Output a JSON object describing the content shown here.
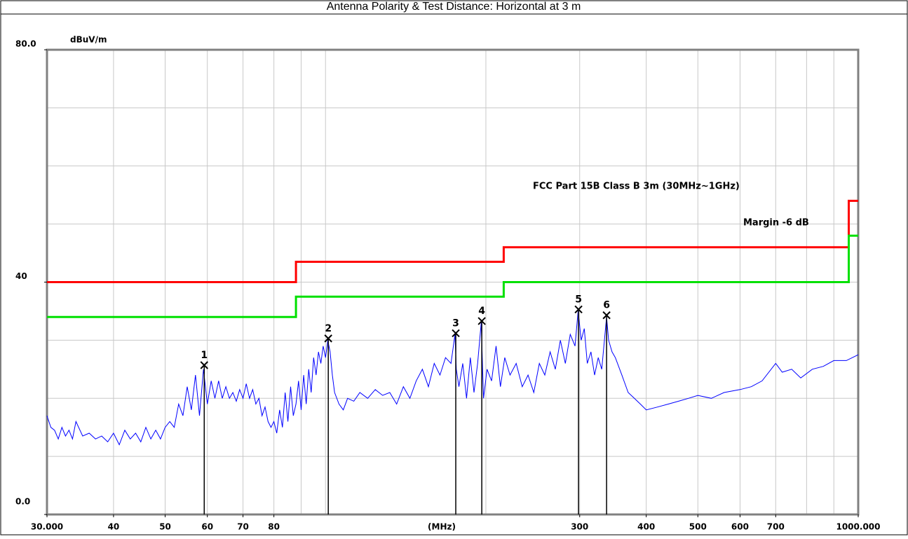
{
  "chart_data": {
    "type": "line",
    "title": "Antenna Polarity & Test Distance: Horizontal at 3 m",
    "y_label": "dBuV/m",
    "x_label": "(MHz)",
    "xscale": "log",
    "xlim": [
      30,
      1000
    ],
    "ylim": [
      0,
      80
    ],
    "xticks": [
      {
        "value": 30,
        "label": "30.000"
      },
      40,
      50,
      60,
      70,
      80,
      300,
      400,
      500,
      600,
      700,
      {
        "value": 1000,
        "label": "1000.000"
      }
    ],
    "xgrid": [
      30,
      40,
      50,
      60,
      70,
      80,
      90,
      100,
      200,
      300,
      400,
      500,
      600,
      700,
      800,
      900,
      1000
    ],
    "yticks": [
      {
        "value": 0,
        "label": "0.0"
      },
      40,
      {
        "value": 80,
        "label": "80.0"
      }
    ],
    "ygrid": [
      0,
      10,
      20,
      30,
      40,
      50,
      60,
      70,
      80
    ],
    "grid": true,
    "series": [
      {
        "color": "#0000ff",
        "x": [
          30,
          30.5,
          31,
          31.5,
          32,
          32.5,
          33,
          33.5,
          34,
          35,
          36,
          37,
          38,
          39,
          40,
          41,
          42,
          43,
          44,
          45,
          46,
          47,
          48,
          49,
          50,
          51,
          52,
          53,
          54,
          55,
          56,
          57,
          58,
          59,
          60,
          61,
          62,
          63,
          64,
          65,
          66,
          67,
          68,
          69,
          70,
          71,
          72,
          73,
          74,
          75,
          76,
          77,
          78,
          79,
          80,
          81,
          82,
          83,
          84,
          85,
          86,
          87,
          88,
          89,
          90,
          91,
          92,
          93,
          94,
          95,
          96,
          97,
          98,
          99,
          100,
          101,
          102,
          103,
          104,
          106,
          108,
          110,
          113,
          116,
          120,
          124,
          128,
          132,
          136,
          140,
          144,
          148,
          152,
          156,
          160,
          164,
          168,
          172,
          175,
          176,
          178,
          181,
          184,
          187,
          190,
          193,
          196,
          198,
          201,
          205,
          209,
          213,
          217,
          222,
          228,
          234,
          240,
          246,
          252,
          258,
          264,
          270,
          276,
          282,
          288,
          294,
          298,
          302,
          306,
          310,
          315,
          320,
          325,
          330,
          337,
          340,
          345,
          350,
          360,
          370,
          380,
          390,
          400,
          420,
          440,
          460,
          480,
          500,
          530,
          560,
          600,
          630,
          660,
          700,
          720,
          750,
          780,
          820,
          860,
          900,
          950,
          1000
        ],
        "values": [
          17,
          15,
          14.5,
          13,
          15,
          13.5,
          14.5,
          13,
          16,
          13.5,
          14,
          13,
          13.5,
          12.5,
          14,
          12,
          14.5,
          13,
          14,
          12.5,
          15,
          13,
          14.5,
          13,
          15,
          16,
          15,
          19,
          17,
          22,
          18,
          24,
          17,
          25,
          19,
          23,
          20,
          23,
          20,
          22,
          20,
          21,
          19.5,
          21.5,
          20,
          22.5,
          20,
          21.5,
          19,
          20,
          17,
          18.5,
          16,
          15,
          16,
          14,
          18,
          15,
          21,
          16,
          22,
          17,
          19,
          23,
          18,
          24,
          19,
          25,
          21,
          27,
          24,
          28,
          26,
          29,
          27,
          30,
          28,
          24,
          21,
          19,
          18,
          20,
          19.5,
          21,
          20,
          21.5,
          20.5,
          21,
          19,
          22,
          20,
          23,
          25,
          22,
          26,
          24,
          27,
          26,
          31,
          25,
          22,
          26,
          20,
          27,
          21,
          26,
          33,
          20,
          25,
          23,
          29,
          22,
          27,
          24,
          26,
          22,
          24,
          21,
          26,
          24,
          28,
          25,
          30,
          26,
          31,
          29,
          35,
          30,
          32,
          26,
          28,
          24,
          27,
          25,
          34,
          30,
          28,
          27,
          24,
          21,
          20,
          19,
          18,
          18.5,
          19,
          19.5,
          20,
          20.5,
          20,
          21,
          21.5,
          22,
          23,
          26,
          24.5,
          25,
          23.5,
          25,
          25.5,
          26.5,
          26.5,
          27.5
        ]
      },
      {
        "name": "FCC Part 15B Class B 3m (30MHz~1GHz)",
        "color": "#ff0000",
        "x": [
          30,
          88,
          88,
          216,
          216,
          960,
          960,
          1000
        ],
        "values": [
          40,
          40,
          43.5,
          43.5,
          46,
          46,
          54,
          54
        ]
      },
      {
        "name": "Margin -6 dB",
        "color": "#00e000",
        "x": [
          30,
          88,
          88,
          216,
          216,
          960,
          960,
          1000
        ],
        "values": [
          34,
          34,
          37.5,
          37.5,
          40,
          40,
          48,
          48
        ]
      }
    ],
    "markers": {
      "color": "#000000",
      "labels": [
        "1",
        "2",
        "3",
        "4",
        "5",
        "6"
      ],
      "x": [
        59.2,
        101.2,
        175.6,
        196.5,
        298.5,
        337
      ],
      "values": [
        25.7,
        30.3,
        31.2,
        33.3,
        35.3,
        34.3
      ]
    }
  }
}
